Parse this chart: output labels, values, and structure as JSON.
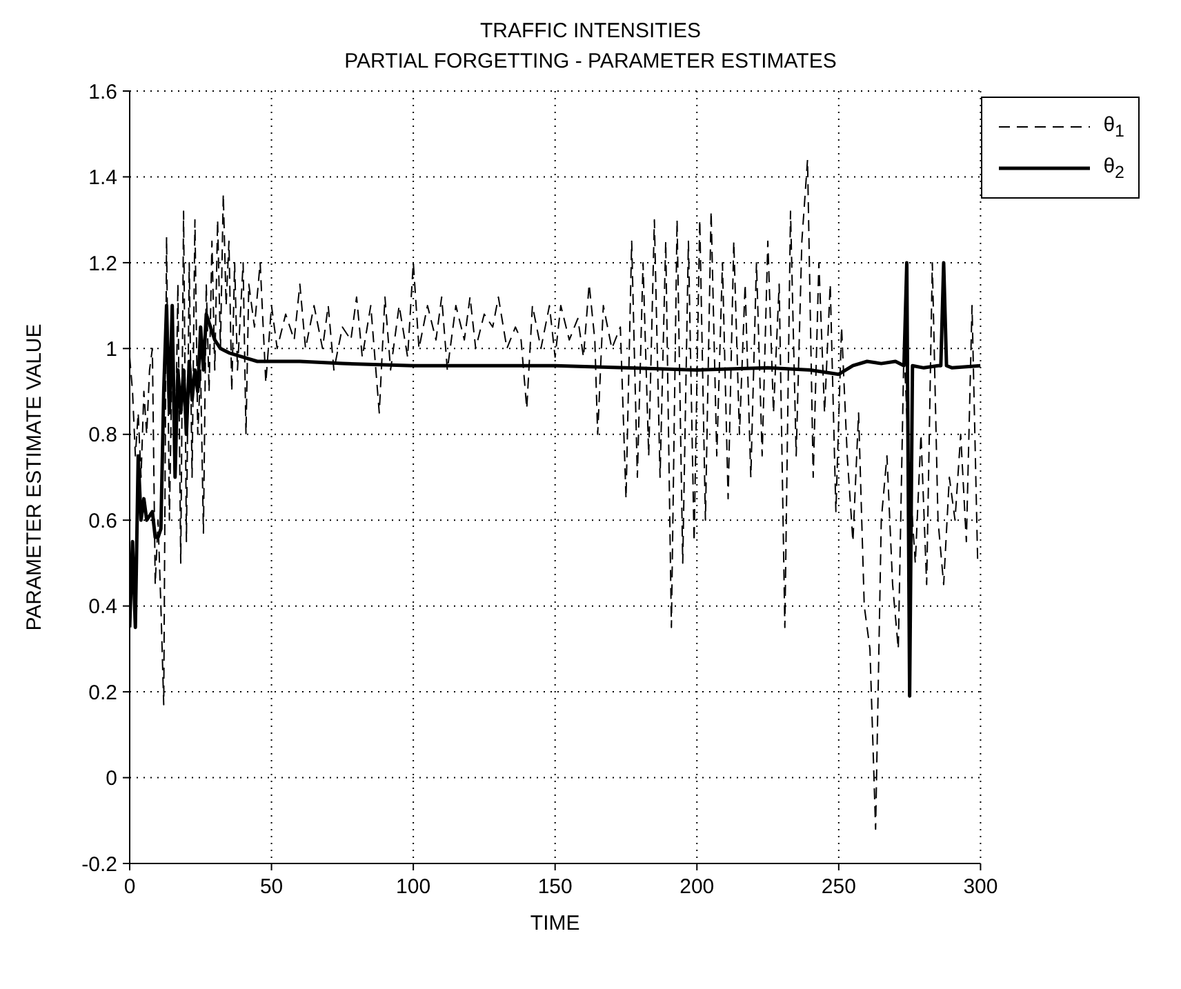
{
  "chart_data": {
    "type": "line",
    "title": "TRAFFIC INTENSITIES",
    "subtitle": "PARTIAL FORGETTING - PARAMETER ESTIMATES",
    "xlabel": "TIME",
    "ylabel": "PARAMETER ESTIMATE VALUE",
    "xlim": [
      0,
      300
    ],
    "xticks": [
      0,
      50,
      100,
      150,
      200,
      250,
      300
    ],
    "ylim": [
      -0.2,
      1.6
    ],
    "yticks": [
      -0.2,
      0,
      0.2,
      0.4,
      0.6,
      0.8,
      1,
      1.2,
      1.4,
      1.6
    ],
    "grid": true,
    "legend": "top right",
    "marker": "none",
    "series": [
      {
        "name": "θ$_{1}$",
        "color": "#000000",
        "line_style": "dashed",
        "x": [
          0,
          1,
          2,
          3,
          4,
          5,
          6,
          7,
          8,
          9,
          10,
          11,
          12,
          13,
          14,
          15,
          16,
          17,
          18,
          19,
          20,
          21,
          22,
          23,
          24,
          25,
          26,
          27,
          28,
          29,
          30,
          31,
          32,
          33,
          34,
          35,
          36,
          37,
          38,
          40,
          41,
          42,
          44,
          46,
          48,
          50,
          52,
          55,
          58,
          60,
          62,
          65,
          68,
          70,
          72,
          75,
          78,
          80,
          82,
          85,
          88,
          90,
          92,
          95,
          98,
          100,
          102,
          105,
          108,
          110,
          112,
          115,
          118,
          120,
          122,
          125,
          128,
          130,
          133,
          136,
          138,
          140,
          142,
          145,
          148,
          150,
          152,
          155,
          158,
          160,
          162,
          164,
          165,
          167,
          170,
          173,
          175,
          177,
          179,
          181,
          183,
          185,
          187,
          189,
          191,
          193,
          195,
          197,
          199,
          201,
          203,
          205,
          207,
          209,
          211,
          213,
          215,
          217,
          219,
          221,
          223,
          225,
          227,
          229,
          231,
          233,
          235,
          237,
          239,
          241,
          243,
          245,
          247,
          249,
          251,
          253,
          255,
          257,
          259,
          261,
          263,
          265,
          267,
          269,
          271,
          273,
          275,
          277,
          279,
          281,
          283,
          285,
          287,
          289,
          291,
          293,
          295,
          297,
          299
        ],
        "values": [
          0.98,
          0.9,
          0.75,
          0.85,
          0.7,
          0.9,
          0.8,
          0.95,
          1.0,
          0.45,
          0.6,
          0.4,
          0.17,
          1.26,
          0.6,
          1.0,
          0.7,
          1.15,
          0.5,
          1.32,
          0.55,
          1.2,
          0.7,
          1.3,
          0.8,
          0.95,
          0.57,
          1.15,
          0.9,
          1.25,
          0.95,
          1.3,
          1.0,
          1.36,
          1.1,
          1.25,
          0.9,
          1.2,
          0.95,
          1.2,
          0.8,
          1.15,
          1.05,
          1.2,
          0.92,
          1.1,
          1.0,
          1.08,
          1.02,
          1.15,
          1.0,
          1.1,
          1.0,
          1.1,
          0.95,
          1.05,
          1.02,
          1.12,
          0.98,
          1.1,
          0.85,
          1.12,
          0.95,
          1.1,
          0.98,
          1.2,
          1.0,
          1.1,
          1.02,
          1.12,
          0.95,
          1.1,
          1.02,
          1.12,
          1.0,
          1.08,
          1.05,
          1.12,
          1.0,
          1.05,
          1.02,
          0.86,
          1.1,
          1.0,
          1.1,
          0.98,
          1.1,
          1.02,
          1.07,
          0.98,
          1.15,
          1.02,
          0.8,
          1.1,
          1.0,
          1.05,
          0.65,
          1.25,
          0.7,
          1.2,
          0.75,
          1.3,
          0.7,
          1.25,
          0.35,
          1.3,
          0.5,
          1.25,
          0.55,
          1.3,
          0.6,
          1.32,
          0.75,
          1.2,
          0.65,
          1.25,
          0.8,
          1.15,
          0.7,
          1.2,
          0.75,
          1.25,
          0.85,
          1.15,
          0.35,
          1.32,
          0.75,
          1.25,
          1.44,
          0.7,
          1.2,
          0.85,
          1.15,
          0.62,
          1.05,
          0.75,
          0.55,
          0.85,
          0.4,
          0.3,
          -0.12,
          0.6,
          0.75,
          0.45,
          0.3,
          1.0,
          0.7,
          0.5,
          0.8,
          0.45,
          1.2,
          0.6,
          0.45,
          0.7,
          0.6,
          0.8,
          0.55,
          1.1,
          0.5
        ]
      },
      {
        "name": "θ$_{2}$",
        "color": "#000000",
        "line_style": "solid",
        "x": [
          0,
          1,
          2,
          3,
          4,
          5,
          6,
          8,
          9,
          10,
          11,
          12,
          13,
          14,
          15,
          16,
          17,
          18,
          19,
          20,
          21,
          22,
          23,
          24,
          25,
          26,
          27,
          28,
          30,
          32,
          35,
          40,
          45,
          50,
          60,
          75,
          100,
          125,
          150,
          175,
          200,
          225,
          240,
          250,
          255,
          260,
          265,
          270,
          273,
          274,
          275,
          276,
          280,
          285,
          286,
          287,
          288,
          290,
          300
        ],
        "values": [
          0.35,
          0.55,
          0.35,
          0.75,
          0.6,
          0.65,
          0.6,
          0.62,
          0.56,
          0.56,
          0.58,
          0.9,
          1.1,
          0.85,
          1.1,
          0.7,
          0.95,
          0.85,
          0.95,
          0.8,
          0.97,
          0.88,
          0.95,
          0.9,
          1.05,
          0.95,
          1.08,
          1.06,
          1.02,
          1.0,
          0.99,
          0.98,
          0.97,
          0.97,
          0.97,
          0.965,
          0.96,
          0.96,
          0.96,
          0.955,
          0.95,
          0.955,
          0.95,
          0.94,
          0.96,
          0.97,
          0.965,
          0.97,
          0.96,
          1.2,
          0.19,
          0.96,
          0.955,
          0.96,
          0.96,
          1.2,
          0.96,
          0.955,
          0.96
        ]
      }
    ]
  }
}
